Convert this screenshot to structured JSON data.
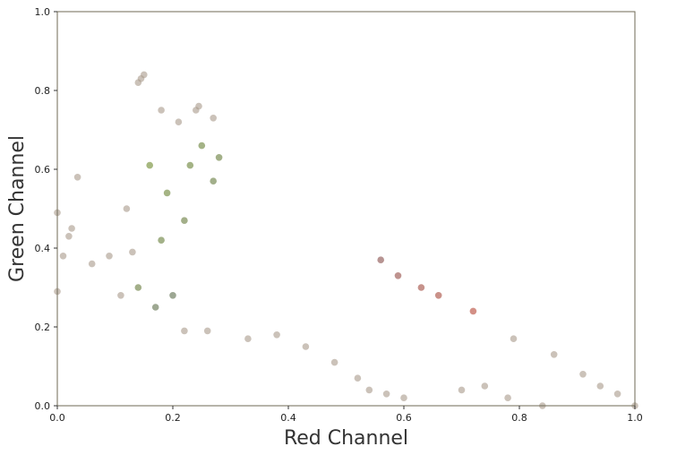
{
  "chart_data": {
    "type": "scatter",
    "title": "",
    "xlabel": "Red Channel",
    "ylabel": "Green Channel",
    "xlim": [
      0.0,
      1.0
    ],
    "ylim": [
      0.0,
      1.0
    ],
    "xticks": [
      "0.0",
      "0.2",
      "0.4",
      "0.6",
      "0.8",
      "1.0"
    ],
    "yticks": [
      "0.0",
      "0.2",
      "0.4",
      "0.6",
      "0.8",
      "1.0"
    ],
    "grid": false,
    "legend": "none",
    "point_opacity": 0.6,
    "colors": {
      "sparse_outliers": "#a89a8a",
      "gray_cluster": "#4f5663",
      "green_region": "#6e8a2a",
      "red_region": "#c4442e",
      "frame": "#6f6a56"
    },
    "annotations": [],
    "series": [
      {
        "points": [
          [
            0.14,
            0.82
          ],
          [
            0.15,
            0.84
          ],
          [
            0.145,
            0.83
          ],
          [
            0.18,
            0.75
          ],
          [
            0.21,
            0.72
          ],
          [
            0.24,
            0.75
          ],
          [
            0.245,
            0.76
          ],
          [
            0.27,
            0.73
          ],
          [
            0.035,
            0.58
          ],
          [
            0.16,
            0.61
          ],
          [
            0.19,
            0.54
          ],
          [
            0.12,
            0.5
          ],
          [
            0.0,
            0.49
          ],
          [
            0.02,
            0.43
          ],
          [
            0.025,
            0.45
          ],
          [
            0.01,
            0.38
          ],
          [
            0.06,
            0.36
          ],
          [
            0.09,
            0.38
          ],
          [
            0.11,
            0.28
          ],
          [
            0.0,
            0.29
          ],
          [
            0.17,
            0.25
          ],
          [
            0.22,
            0.19
          ],
          [
            0.26,
            0.19
          ],
          [
            0.33,
            0.17
          ],
          [
            0.38,
            0.18
          ],
          [
            0.43,
            0.15
          ],
          [
            0.48,
            0.11
          ],
          [
            0.52,
            0.07
          ],
          [
            0.54,
            0.04
          ],
          [
            0.57,
            0.03
          ],
          [
            0.6,
            0.02
          ],
          [
            0.7,
            0.04
          ],
          [
            0.74,
            0.05
          ],
          [
            0.78,
            0.02
          ],
          [
            0.84,
            0.0
          ],
          [
            0.94,
            0.05
          ],
          [
            0.97,
            0.03
          ],
          [
            1.0,
            0.0
          ],
          [
            0.25,
            0.66
          ],
          [
            0.23,
            0.61
          ],
          [
            0.27,
            0.57
          ],
          [
            0.28,
            0.63
          ],
          [
            0.22,
            0.47
          ],
          [
            0.18,
            0.42
          ],
          [
            0.13,
            0.39
          ],
          [
            0.14,
            0.3
          ],
          [
            0.2,
            0.28
          ],
          [
            0.56,
            0.37
          ],
          [
            0.59,
            0.33
          ],
          [
            0.63,
            0.3
          ],
          [
            0.66,
            0.28
          ],
          [
            0.72,
            0.24
          ],
          [
            0.79,
            0.17
          ],
          [
            0.86,
            0.13
          ],
          [
            0.91,
            0.08
          ]
        ]
      }
    ]
  }
}
